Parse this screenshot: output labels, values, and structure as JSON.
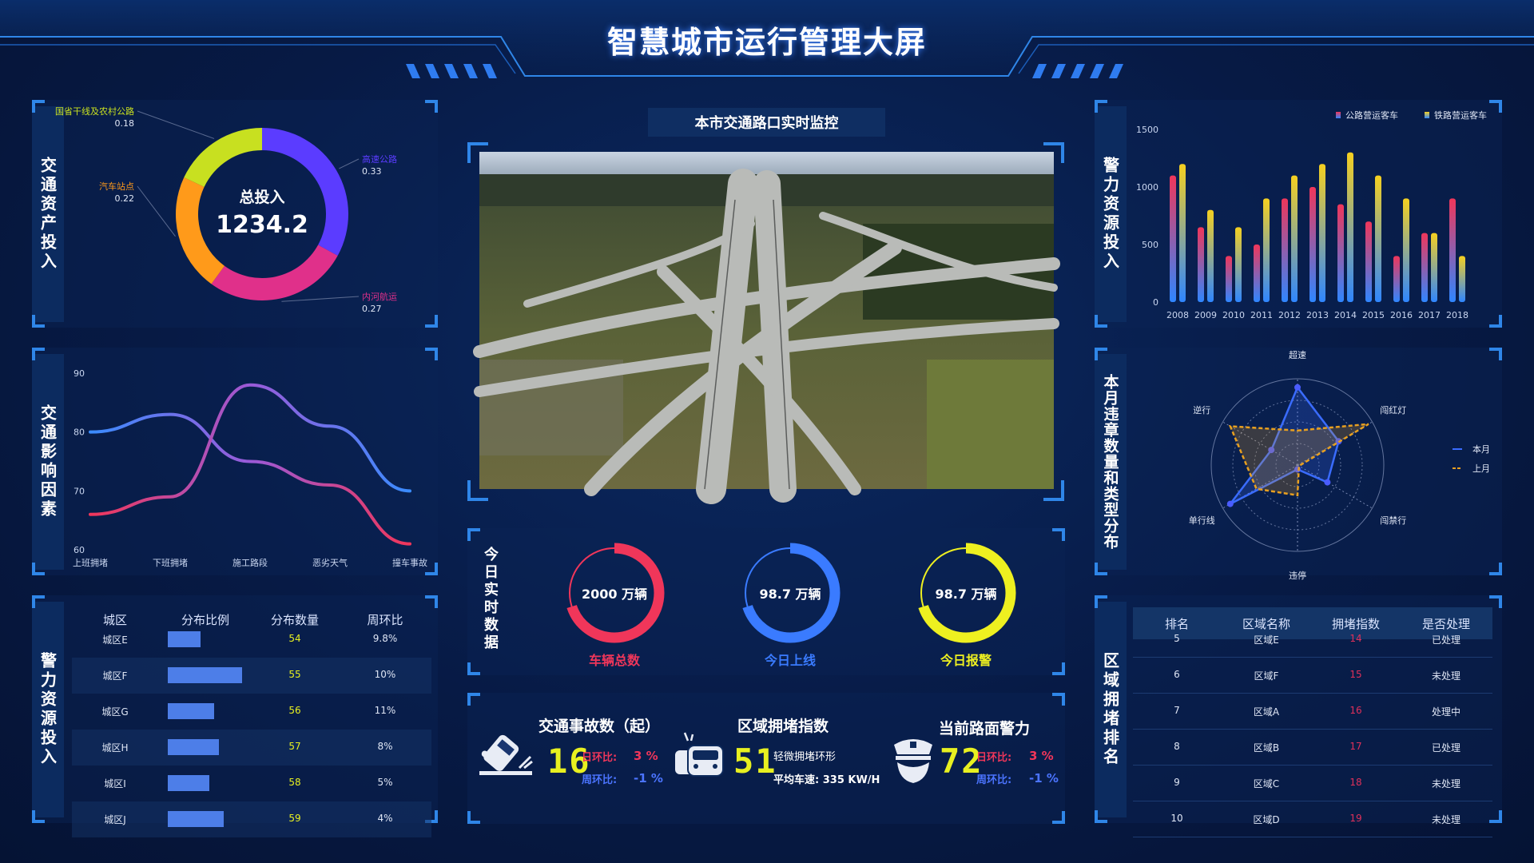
{
  "header": {
    "title": "智慧城市运行管理大屏"
  },
  "colors": {
    "accent": "#2f86e8",
    "background": "#071a45",
    "red": "#f0365a",
    "blue": "#3a7bff",
    "yellow": "#eef020"
  },
  "asset_panel": {
    "title": "交通资产投入",
    "center_label": "总投入",
    "center_value": "1234.2",
    "chart_data": {
      "type": "pie",
      "donut": true,
      "slices": [
        {
          "name": "高速公路",
          "value": 0.33,
          "color": "#5b3cff"
        },
        {
          "name": "内河航运",
          "value": 0.27,
          "color": "#e0308a"
        },
        {
          "name": "汽车站点",
          "value": 0.22,
          "color": "#ff9a1a"
        },
        {
          "name": "国省干线及农村公路",
          "value": 0.18,
          "color": "#c8e020"
        }
      ]
    }
  },
  "factor_panel": {
    "title": "交通影响因素",
    "chart_data": {
      "type": "line",
      "categories": [
        "上班拥堵",
        "下班拥堵",
        "施工路段",
        "恶劣天气",
        "撞车事故"
      ],
      "ylim": [
        60,
        90
      ],
      "yticks": [
        60,
        70,
        80,
        90
      ],
      "series": [
        {
          "values": [
            80,
            83,
            75,
            71,
            61
          ]
        },
        {
          "values": [
            66,
            69,
            88,
            81,
            70
          ]
        }
      ]
    }
  },
  "police_table": {
    "title": "警力资源投入",
    "headers": [
      "城区",
      "分布比例",
      "分布数量",
      "周环比"
    ],
    "rows": [
      {
        "district": "城区E",
        "ratio": 0.44,
        "count": "54",
        "wow": "9.8%"
      },
      {
        "district": "城区F",
        "ratio": 1.0,
        "count": "55",
        "wow": "10%"
      },
      {
        "district": "城区G",
        "ratio": 0.62,
        "count": "56",
        "wow": "11%"
      },
      {
        "district": "城区H",
        "ratio": 0.69,
        "count": "57",
        "wow": "8%"
      },
      {
        "district": "城区I",
        "ratio": 0.56,
        "count": "58",
        "wow": "5%"
      },
      {
        "district": "城区J",
        "ratio": 0.75,
        "count": "59",
        "wow": "4%"
      }
    ]
  },
  "monitor": {
    "title": "本市交通路口实时监控"
  },
  "realtime": {
    "title": "今日实时数据",
    "items": [
      {
        "value": "2000 万辆",
        "label": "车辆总数",
        "color": "#f0365a",
        "fill": 0.7
      },
      {
        "value": "98.7 万辆",
        "label": "今日上线",
        "color": "#3a7bff",
        "fill": 0.7
      },
      {
        "value": "98.7 万辆",
        "label": "今日报警",
        "color": "#eef020",
        "fill": 0.7
      }
    ]
  },
  "kpis": {
    "accident": {
      "title": "交通事故数（起）",
      "value": "16",
      "day_label": "日环比:",
      "day_value": "3 %",
      "week_label": "周环比:",
      "week_value": "-1 %",
      "icon": "car-crash-icon"
    },
    "congestion": {
      "title": "区域拥堵指数",
      "value": "51",
      "status": "轻微拥堵环形",
      "speed": "平均车速: 335 KW/H",
      "icon": "cars-icon"
    },
    "police": {
      "title": "当前路面警力",
      "value": "72",
      "day_label": "日环比:",
      "day_value": "3 %",
      "week_label": "周环比:",
      "week_value": "-1 %",
      "icon": "police-icon"
    }
  },
  "police_bar": {
    "title": "警力资源投入",
    "chart_data": {
      "type": "bar",
      "categories": [
        "2008",
        "2009",
        "2010",
        "2011",
        "2012",
        "2013",
        "2014",
        "2015",
        "2016",
        "2017",
        "2018"
      ],
      "ylim": [
        0,
        1500
      ],
      "yticks": [
        0,
        500,
        1000,
        1500
      ],
      "legend": "top-right",
      "series": [
        {
          "name": "公路营运客车",
          "color": "#f0365a",
          "values": [
            1100,
            650,
            400,
            500,
            900,
            1000,
            850,
            700,
            400,
            600,
            900
          ]
        },
        {
          "name": "铁路营运客车",
          "color": "#f5d020",
          "values": [
            1200,
            800,
            650,
            900,
            1100,
            1200,
            1300,
            1100,
            900,
            600,
            400
          ]
        }
      ]
    }
  },
  "violation": {
    "title": "本月违章数量和类型分布",
    "chart_data": {
      "type": "radar",
      "indicators": [
        "超速",
        "闯红灯",
        "闯禁行",
        "违停",
        "单行线",
        "逆行"
      ],
      "max": 100,
      "legend": "right",
      "series": [
        {
          "name": "本月",
          "color": "#3a6cff",
          "values": [
            90,
            55,
            40,
            5,
            90,
            35
          ]
        },
        {
          "name": "上月",
          "color": "#e8a020",
          "values": [
            40,
            95,
            0,
            35,
            55,
            90
          ]
        }
      ]
    }
  },
  "congestion_table": {
    "title": "区域拥堵排名",
    "headers": [
      "排名",
      "区域名称",
      "拥堵指数",
      "是否处理"
    ],
    "rows": [
      {
        "rank": "5",
        "area": "区域E",
        "index": "14",
        "handled": "已处理"
      },
      {
        "rank": "6",
        "area": "区域F",
        "index": "15",
        "handled": "未处理"
      },
      {
        "rank": "7",
        "area": "区域A",
        "index": "16",
        "handled": "处理中"
      },
      {
        "rank": "8",
        "area": "区域B",
        "index": "17",
        "handled": "已处理"
      },
      {
        "rank": "9",
        "area": "区域C",
        "index": "18",
        "handled": "未处理"
      },
      {
        "rank": "10",
        "area": "区域D",
        "index": "19",
        "handled": "未处理"
      }
    ]
  }
}
